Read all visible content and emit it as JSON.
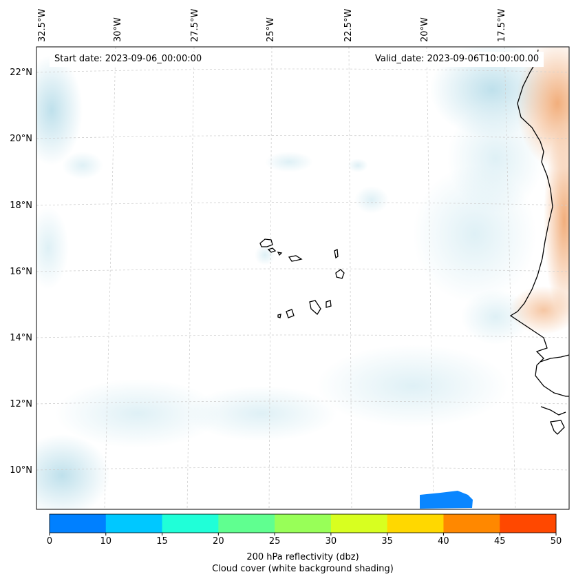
{
  "map": {
    "start_date": "Start date: 2023-09-06_00:00:00",
    "valid_date": "Valid_date: 2023-09-06T10:00:00.00",
    "lon_labels": [
      "32.5°W",
      "30°W",
      "27.5°W",
      "25°W",
      "22.5°W",
      "20°W",
      "17.5°W"
    ],
    "lat_labels": [
      "22°N",
      "20°N",
      "18°N",
      "16°N",
      "14°N",
      "12°N",
      "10°N"
    ],
    "extent": {
      "lon_min": -33.0,
      "lon_max": -16.5,
      "lat_min": 8.9,
      "lat_max": 22.8
    },
    "gridlines": true,
    "colors": {
      "coast": "#000000",
      "cloud": "#b7dde9",
      "warm": "#f3b386",
      "reflectivity": "#0a86ff"
    }
  },
  "colorbar": {
    "ticks": [
      "0",
      "10",
      "15",
      "20",
      "25",
      "30",
      "35",
      "40",
      "45",
      "50"
    ],
    "colors": [
      "#0080ff",
      "#00c8ff",
      "#20ffd8",
      "#60ff90",
      "#98ff58",
      "#d8ff20",
      "#ffd800",
      "#ff8800",
      "#ff4800"
    ],
    "title_line1": "200 hPa reflectivity (dbz)",
    "title_line2": "Cloud cover (white background shading)"
  }
}
